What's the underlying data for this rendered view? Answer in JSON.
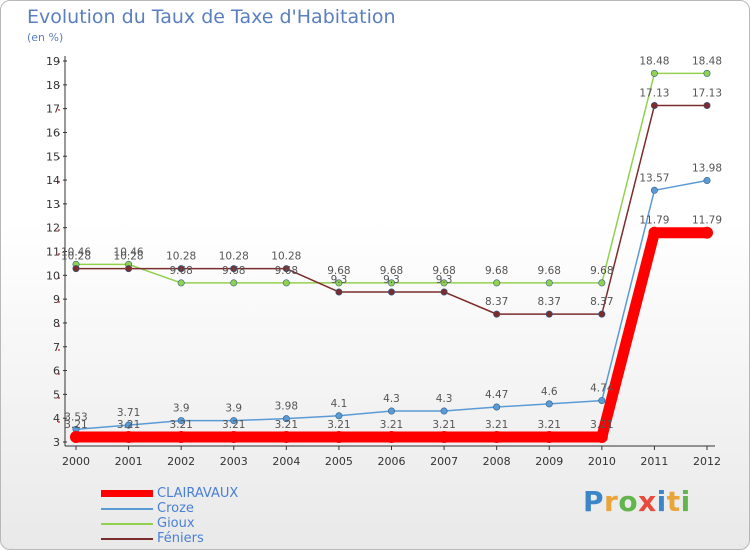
{
  "title": "Evolution du Taux de Taxe d'Habitation",
  "unit_label": "(en %)",
  "logo": {
    "text": "Proxiti",
    "letters": [
      {
        "ch": "P",
        "color": "#3a86c8"
      },
      {
        "ch": "r",
        "color": "#e9a43a"
      },
      {
        "ch": "o",
        "color": "#63b54d"
      },
      {
        "ch": "x",
        "color": "#e64b3c"
      },
      {
        "ch": "i",
        "color": "#3a86c8"
      },
      {
        "ch": "t",
        "color": "#e9a43a"
      },
      {
        "ch": "i",
        "color": "#63b54d"
      }
    ]
  },
  "chart_data": {
    "type": "line",
    "title": "Evolution du Taux de Taxe d'Habitation",
    "ylabel": "(en %)",
    "xlabel": "",
    "x": [
      "2000",
      "2001",
      "2002",
      "2003",
      "2004",
      "2005",
      "2006",
      "2007",
      "2008",
      "2009",
      "2010",
      "2011",
      "2012"
    ],
    "ylim": [
      3,
      19
    ],
    "yticks": [
      3,
      4,
      5,
      6,
      7,
      8,
      9,
      10,
      11,
      12,
      13,
      14,
      15,
      16,
      17,
      18,
      19
    ],
    "grid": false,
    "legend_position": "bottom-left",
    "series": [
      {
        "name": "CLAIRAVAUX",
        "color": "#ff0000",
        "thick": true,
        "values": [
          3.21,
          3.21,
          3.21,
          3.21,
          3.21,
          3.21,
          3.21,
          3.21,
          3.21,
          3.21,
          3.21,
          11.79,
          11.79
        ],
        "labels": [
          "3.21",
          "3.21",
          "3.21",
          "3.21",
          "3.21",
          "3.21",
          "3.21",
          "3.21",
          "3.21",
          "3.21",
          "3.21",
          "11.79",
          "11.79"
        ]
      },
      {
        "name": "Croze",
        "color": "#5b9bd5",
        "thick": false,
        "values": [
          3.53,
          3.71,
          3.9,
          3.9,
          3.98,
          4.1,
          4.3,
          4.3,
          4.47,
          4.6,
          4.74,
          13.57,
          13.98
        ],
        "labels": [
          "3.53",
          "3.71",
          "3.9",
          "3.9",
          "3.98",
          "4.1",
          "4.3",
          "4.3",
          "4.47",
          "4.6",
          "4.74",
          "13.57",
          "13.98"
        ]
      },
      {
        "name": "Gioux",
        "color": "#92d050",
        "thick": false,
        "values": [
          10.46,
          10.46,
          9.68,
          9.68,
          9.68,
          9.68,
          9.68,
          9.68,
          9.68,
          9.68,
          9.68,
          18.48,
          18.48
        ],
        "labels": [
          "10.46",
          "10.46",
          "9.68",
          "9.68",
          "9.68",
          "9.68",
          "9.68",
          "9.68",
          "9.68",
          "9.68",
          "9.68",
          "18.48",
          "18.48"
        ]
      },
      {
        "name": "Féniers",
        "color": "#7b2c2c",
        "thick": false,
        "values": [
          10.28,
          10.28,
          10.28,
          10.28,
          10.28,
          9.3,
          9.3,
          9.3,
          8.37,
          8.37,
          8.37,
          17.13,
          17.13
        ],
        "labels": [
          "10.28",
          "10.28",
          "10.28",
          "10.28",
          "10.28",
          "9.3",
          "9.3",
          "9.3",
          "8.37",
          "8.37",
          "8.37",
          "17.13",
          "17.13"
        ]
      }
    ]
  }
}
